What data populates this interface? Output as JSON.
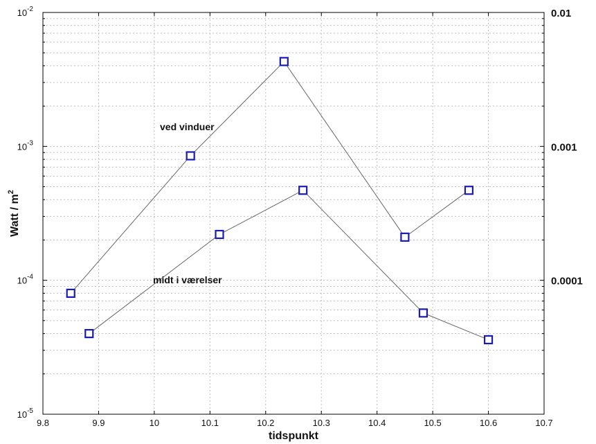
{
  "chart_data": {
    "type": "line",
    "xlabel": "tidspunkt",
    "ylabel": "Watt / m",
    "ylabel_sup": "2",
    "xlim": [
      9.8,
      10.7
    ],
    "ylim": [
      1e-05,
      0.01
    ],
    "yscale": "log",
    "grid": true,
    "x_ticks": [
      "9.8",
      "9.9",
      "10",
      "10.1",
      "10.2",
      "10.3",
      "10.4",
      "10.5",
      "10.6",
      "10.7"
    ],
    "y_ticks_left": [
      {
        "base": "10",
        "exp": "-2"
      },
      {
        "base": "10",
        "exp": "-3"
      },
      {
        "base": "10",
        "exp": "-4"
      },
      {
        "base": "10",
        "exp": "-5"
      }
    ],
    "y_ticks_right": [
      "0.01",
      "0.001",
      "0.0001"
    ],
    "marker": "square",
    "marker_color": "#1a1ab8",
    "line_color": "#666666",
    "series": [
      {
        "x": [
          9.85,
          10.065,
          10.233,
          10.45,
          10.565
        ],
        "y": [
          8e-05,
          0.00085,
          0.0043,
          0.00021,
          0.00047
        ]
      },
      {
        "x": [
          9.883,
          10.117,
          10.267,
          10.483,
          10.6
        ],
        "y": [
          4e-05,
          0.00022,
          0.00047,
          5.7e-05,
          3.6e-05
        ]
      }
    ],
    "annotations": [
      "ved vinduer",
      "midt i værelser"
    ]
  }
}
